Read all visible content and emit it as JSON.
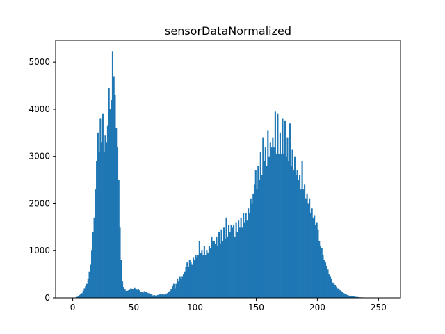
{
  "chart_data": {
    "type": "bar",
    "title": "sensorDataNormalized",
    "xlabel": "",
    "ylabel": "",
    "bar_color": "#1f77b4",
    "grid": false,
    "xlim": [
      -14,
      268
    ],
    "ylim": [
      0,
      5460
    ],
    "x_ticks": [
      0,
      50,
      100,
      150,
      200,
      250
    ],
    "y_ticks": [
      0,
      1000,
      2000,
      3000,
      4000,
      5000
    ],
    "bin_start": 0,
    "bin_width": 1,
    "values": [
      0,
      5,
      10,
      20,
      35,
      60,
      80,
      100,
      150,
      200,
      250,
      300,
      400,
      550,
      700,
      1000,
      1400,
      1700,
      2300,
      2900,
      3500,
      3100,
      3800,
      3300,
      3900,
      3100,
      3450,
      3300,
      3650,
      4450,
      4000,
      4200,
      5220,
      4700,
      4300,
      3600,
      3200,
      2500,
      1500,
      800,
      350,
      220,
      180,
      150,
      150,
      160,
      170,
      200,
      190,
      180,
      210,
      180,
      170,
      190,
      160,
      130,
      120,
      110,
      140,
      130,
      130,
      100,
      100,
      80,
      70,
      50,
      60,
      50,
      50,
      60,
      70,
      80,
      70,
      80,
      70,
      70,
      90,
      100,
      120,
      150,
      180,
      250,
      300,
      200,
      300,
      400,
      350,
      450,
      400,
      450,
      500,
      550,
      650,
      750,
      650,
      800,
      750,
      700,
      850,
      800,
      900,
      850,
      900,
      1200,
      950,
      1000,
      900,
      1100,
      900,
      1000,
      950,
      1100,
      1050,
      1300,
      1200,
      1200,
      1150,
      1300,
      1100,
      1400,
      1150,
      1450,
      1200,
      1500,
      1250,
      1700,
      1300,
      1550,
      1400,
      1550,
      1500,
      1550,
      1300,
      1600,
      1400,
      1650,
      1500,
      1700,
      1500,
      1800,
      1600,
      1800,
      1650,
      1900,
      1800,
      2100,
      2000,
      2200,
      2400,
      2700,
      2300,
      2800,
      2500,
      3100,
      2600,
      3400,
      2900,
      3200,
      2800,
      3550,
      3000,
      3300,
      3200,
      3400,
      3200,
      3950,
      3050,
      3900,
      3050,
      3500,
      3050,
      3800,
      3050,
      3750,
      3000,
      3400,
      2900,
      3700,
      2800,
      3150,
      2700,
      3000,
      2600,
      2700,
      2500,
      2600,
      2300,
      2900,
      2300,
      2400,
      2100,
      2200,
      2000,
      2100,
      1800,
      1900,
      1700,
      1750,
      1550,
      1600,
      1450,
      1200,
      1100,
      1050,
      900,
      800,
      750,
      680,
      600,
      500,
      450,
      400,
      330,
      300,
      280,
      240,
      200,
      180,
      160,
      140,
      120,
      100,
      80,
      70,
      60,
      50,
      45,
      40,
      35,
      30,
      25,
      20,
      20,
      15,
      10,
      10,
      10,
      5,
      5,
      5
    ]
  }
}
